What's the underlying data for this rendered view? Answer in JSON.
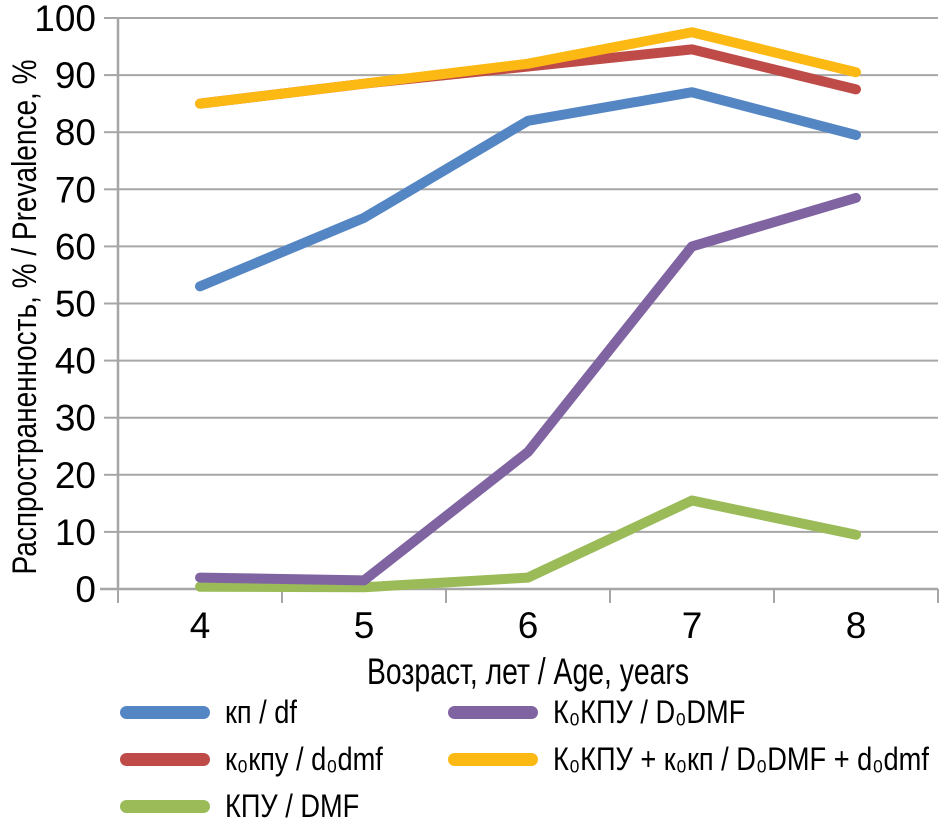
{
  "chart_data": {
    "type": "line",
    "x": [
      4,
      5,
      6,
      7,
      8
    ],
    "xlabel": "Возраст, лет / Age, years",
    "ylabel": "Распространенность, % / Prevalence, %",
    "ylim": [
      0,
      100
    ],
    "ytick_step": 10,
    "grid": true,
    "legend_position": "bottom",
    "axis_color": "#A6A6A6",
    "text_color": "#000000",
    "series": [
      {
        "name": "кп / df",
        "color": "#5586C4",
        "values": [
          53,
          65,
          82,
          87,
          79.5
        ]
      },
      {
        "name": "к₀кпу / d₀dmf",
        "color": "#BE4B48",
        "values": [
          85,
          88.5,
          91.5,
          94.5,
          87.5
        ]
      },
      {
        "name": "КПУ / DMF",
        "color": "#9BBB59",
        "values": [
          0.4,
          0.3,
          2,
          15.5,
          9.5
        ]
      },
      {
        "name": "К₀КПУ / D₀DMF",
        "color": "#8064A2",
        "values": [
          2,
          1.5,
          24,
          60,
          68.5
        ]
      },
      {
        "name": "К₀КПУ + к₀кп / D₀DMF + d₀dmf",
        "color": "#FDB913",
        "values": [
          85,
          88.5,
          92,
          97.5,
          90.5
        ]
      }
    ]
  }
}
